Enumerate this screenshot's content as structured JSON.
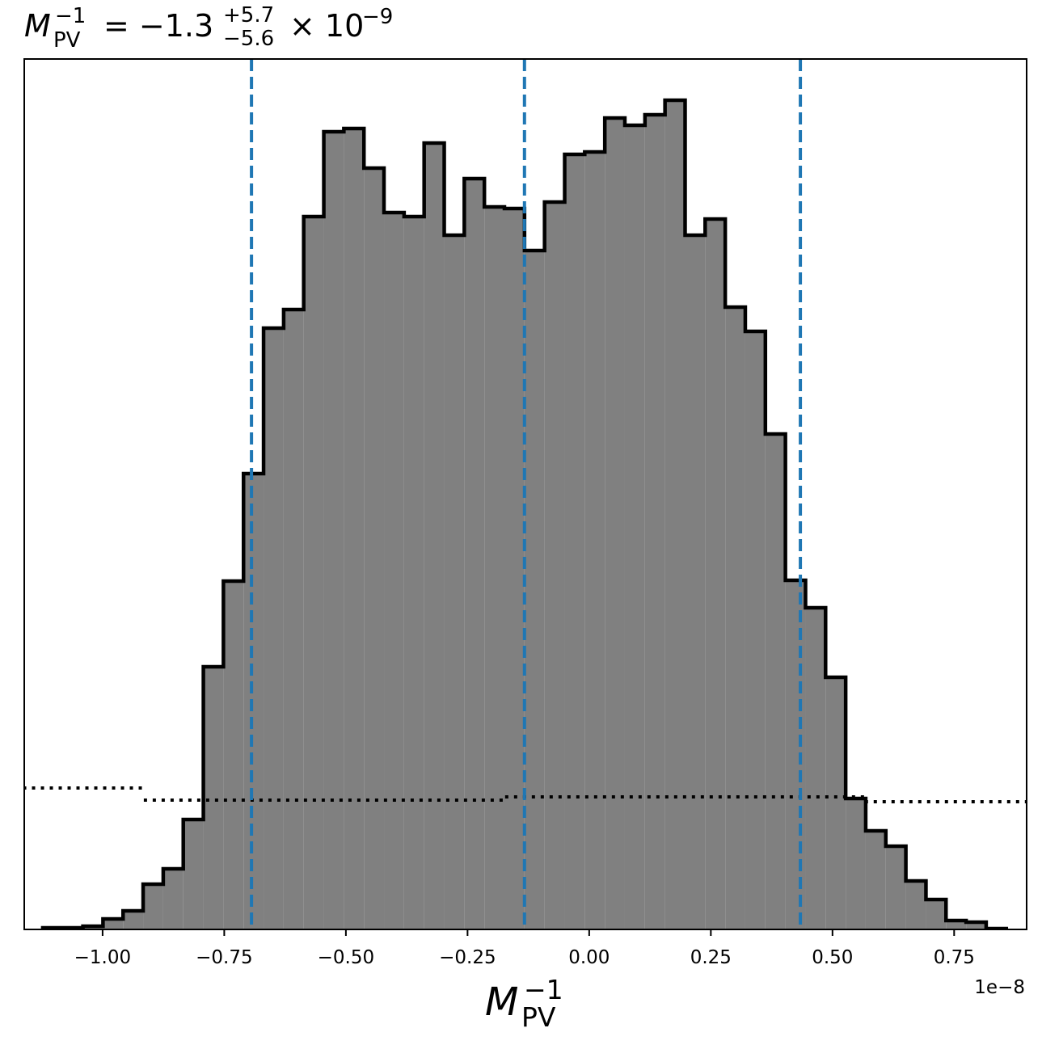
{
  "chart_data": {
    "type": "histogram",
    "title": {
      "symbol": "M",
      "sub": "PV",
      "sup": "−1",
      "eq": "= −1.3",
      "upper": "+5.7",
      "lower": "−5.6",
      "times": "× 10",
      "exp": "−9"
    },
    "xlabel": {
      "symbol": "M",
      "sub": "PV",
      "sup": "−1"
    },
    "x_offset_label": "1e−8",
    "bins": [
      -1.1229,
      -1.0817,
      -1.0404,
      -0.9992,
      -0.9579,
      -0.9167,
      -0.8754,
      -0.8342,
      -0.7929,
      -0.7517,
      -0.7104,
      -0.6692,
      -0.6279,
      -0.5867,
      -0.5454,
      -0.5042,
      -0.4629,
      -0.4217,
      -0.3804,
      -0.3392,
      -0.2979,
      -0.2567,
      -0.2154,
      -0.1742,
      -0.1329,
      -0.0917,
      -0.0504,
      -0.0092,
      0.0321,
      0.0733,
      0.1146,
      0.1558,
      0.1971,
      0.2383,
      0.2796,
      0.3208,
      0.3621,
      0.4033,
      0.4446,
      0.4858,
      0.5271,
      0.5683,
      0.6096,
      0.6508,
      0.6921,
      0.7333,
      0.7746,
      0.8158,
      0.8571
    ],
    "values": [
      2,
      2,
      4,
      13,
      23,
      56,
      75,
      136,
      325,
      431,
      564,
      744,
      767,
      882,
      987,
      991,
      942,
      887,
      882,
      973,
      859,
      929,
      894,
      892,
      840,
      900,
      959,
      962,
      1004,
      995,
      1008,
      1026,
      859,
      879,
      770,
      740,
      613,
      432,
      398,
      312,
      162,
      122,
      103,
      60,
      37,
      11,
      9,
      1
    ],
    "color": "#808080",
    "edge_color": "#000000",
    "prior": {
      "bins": [
        -1.2,
        -0.9153,
        -0.1728,
        0.5664,
        0.95
      ],
      "values": [
        175,
        160,
        164,
        158
      ],
      "color": "#000000"
    },
    "quantiles": {
      "values": [
        -0.694,
        -0.133,
        0.434
      ],
      "color": "#1f77b4"
    },
    "xlim": [
      -1.161,
      0.899
    ],
    "ylim": [
      0,
      1077
    ],
    "xticks": [
      {
        "value": -1,
        "label": "−1.00"
      },
      {
        "value": -0.75,
        "label": "−0.75"
      },
      {
        "value": -0.5,
        "label": "−0.50"
      },
      {
        "value": -0.25,
        "label": "−0.25"
      },
      {
        "value": 0,
        "label": "0.00"
      },
      {
        "value": 0.25,
        "label": "0.25"
      },
      {
        "value": 0.5,
        "label": "0.50"
      },
      {
        "value": 0.75,
        "label": "0.75"
      }
    ]
  }
}
